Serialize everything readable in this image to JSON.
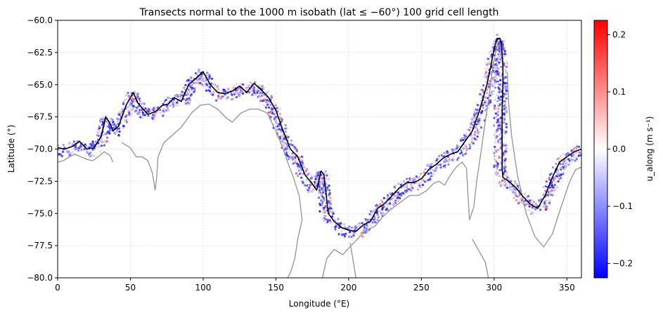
{
  "chart_data": {
    "type": "scatter",
    "title": "Transects normal to the 1000 m isobath (lat ≤ −60°) 100 grid cell length",
    "xlabel": "Longitude (°E)",
    "ylabel": "Latitude (°)",
    "xlim": [
      0,
      360
    ],
    "ylim": [
      -80,
      -60
    ],
    "xticks": [
      0,
      50,
      100,
      150,
      200,
      250,
      300,
      350
    ],
    "xtick_labels": [
      "0",
      "50",
      "100",
      "150",
      "200",
      "250",
      "300",
      "350"
    ],
    "yticks": [
      -60,
      -62.5,
      -65,
      -67.5,
      -70,
      -72.5,
      -75,
      -77.5,
      -80
    ],
    "ytick_labels": [
      "−60.0",
      "−62.5",
      "−65.0",
      "−67.5",
      "−70.0",
      "−72.5",
      "−75.0",
      "−77.5",
      "−80.0"
    ],
    "grid": true,
    "colorbar": {
      "label": "u_along (m s⁻¹)",
      "vmin": -0.225,
      "vmax": 0.225,
      "ticks": [
        0.2,
        0.1,
        0.0,
        -0.1,
        -0.2
      ],
      "tick_labels": [
        "0.2",
        "0.1",
        "0.0",
        "−0.1",
        "−0.2"
      ],
      "colormap": "bwr",
      "colors": [
        "#0000ff",
        "#ffffff",
        "#ff0000"
      ]
    },
    "isobath_line": {
      "color": "#000000",
      "points": [
        [
          0,
          -69.9
        ],
        [
          5,
          -70.0
        ],
        [
          10,
          -69.8
        ],
        [
          15,
          -69.4
        ],
        [
          20,
          -70.0
        ],
        [
          25,
          -69.9
        ],
        [
          30,
          -69.0
        ],
        [
          33,
          -67.5
        ],
        [
          36,
          -68.0
        ],
        [
          38,
          -68.6
        ],
        [
          42,
          -68.2
        ],
        [
          47,
          -66.6
        ],
        [
          52,
          -65.6
        ],
        [
          55,
          -66.4
        ],
        [
          58,
          -66.8
        ],
        [
          62,
          -67.3
        ],
        [
          67,
          -67.1
        ],
        [
          72,
          -66.6
        ],
        [
          76,
          -66.5
        ],
        [
          80,
          -66.0
        ],
        [
          85,
          -66.3
        ],
        [
          90,
          -65.0
        ],
        [
          95,
          -64.5
        ],
        [
          100,
          -64.0
        ],
        [
          105,
          -65.0
        ],
        [
          110,
          -65.6
        ],
        [
          115,
          -65.7
        ],
        [
          120,
          -65.5
        ],
        [
          125,
          -65.1
        ],
        [
          130,
          -65.6
        ],
        [
          135,
          -64.9
        ],
        [
          140,
          -65.4
        ],
        [
          145,
          -66.0
        ],
        [
          150,
          -67.0
        ],
        [
          155,
          -68.6
        ],
        [
          160,
          -70.0
        ],
        [
          165,
          -70.6
        ],
        [
          170,
          -72.0
        ],
        [
          175,
          -72.7
        ],
        [
          178,
          -73.2
        ],
        [
          181,
          -71.7
        ],
        [
          183,
          -72.0
        ],
        [
          184,
          -73.0
        ],
        [
          186,
          -75.0
        ],
        [
          190,
          -75.6
        ],
        [
          195,
          -76.1
        ],
        [
          200,
          -76.3
        ],
        [
          205,
          -76.4
        ],
        [
          210,
          -75.9
        ],
        [
          215,
          -75.6
        ],
        [
          220,
          -74.6
        ],
        [
          225,
          -74.2
        ],
        [
          230,
          -73.6
        ],
        [
          235,
          -73.0
        ],
        [
          240,
          -72.6
        ],
        [
          245,
          -72.6
        ],
        [
          250,
          -72.3
        ],
        [
          255,
          -71.6
        ],
        [
          260,
          -71.2
        ],
        [
          265,
          -70.7
        ],
        [
          270,
          -70.4
        ],
        [
          275,
          -70.2
        ],
        [
          280,
          -69.4
        ],
        [
          285,
          -68.6
        ],
        [
          290,
          -67.0
        ],
        [
          295,
          -65.0
        ],
        [
          298,
          -63.4
        ],
        [
          300,
          -62.2
        ],
        [
          302,
          -61.4
        ],
        [
          304,
          -61.4
        ],
        [
          305,
          -61.8
        ],
        [
          306,
          -63.5
        ],
        [
          306,
          -65.0
        ],
        [
          305.5,
          -67.0
        ],
        [
          305.5,
          -69.0
        ],
        [
          305.5,
          -71.5
        ],
        [
          306,
          -72.2
        ],
        [
          310,
          -72.5
        ],
        [
          315,
          -73.0
        ],
        [
          320,
          -73.7
        ],
        [
          325,
          -74.3
        ],
        [
          330,
          -74.6
        ],
        [
          335,
          -73.6
        ],
        [
          340,
          -72.2
        ],
        [
          345,
          -71.0
        ],
        [
          350,
          -70.6
        ],
        [
          355,
          -70.2
        ],
        [
          360,
          -70.0
        ]
      ]
    },
    "coastline": {
      "color": "#999999",
      "segments": [
        [
          [
            0,
            -71.0
          ],
          [
            4,
            -70.9
          ],
          [
            8,
            -70.6
          ],
          [
            12,
            -70.4
          ],
          [
            16,
            -70.6
          ],
          [
            20,
            -70.8
          ],
          [
            24,
            -70.9
          ],
          [
            28,
            -70.6
          ],
          [
            32,
            -70.2
          ],
          [
            36,
            -70.5
          ],
          [
            38,
            -71.0
          ]
        ],
        [
          [
            44,
            -69.5
          ],
          [
            47,
            -69.7
          ],
          [
            50,
            -69.9
          ],
          [
            54,
            -70.6
          ],
          [
            58,
            -70.6
          ],
          [
            62,
            -70.9
          ],
          [
            65,
            -71.8
          ],
          [
            67,
            -73.2
          ],
          [
            68,
            -72.3
          ],
          [
            69,
            -70.6
          ],
          [
            73,
            -69.5
          ],
          [
            78,
            -69.0
          ],
          [
            85,
            -68.3
          ],
          [
            92,
            -67.2
          ],
          [
            98,
            -66.6
          ],
          [
            104,
            -66.5
          ],
          [
            110,
            -66.9
          ],
          [
            116,
            -67.6
          ],
          [
            120,
            -67.9
          ],
          [
            126,
            -67.2
          ],
          [
            132,
            -66.9
          ],
          [
            138,
            -66.9
          ],
          [
            144,
            -67.2
          ],
          [
            150,
            -68.6
          ],
          [
            155,
            -70.0
          ],
          [
            158,
            -71.0
          ],
          [
            162,
            -72.2
          ],
          [
            166,
            -73.6
          ],
          [
            168,
            -75.5
          ],
          [
            165,
            -77.0
          ],
          [
            163,
            -78.5
          ],
          [
            160,
            -79.6
          ],
          [
            158,
            -80.0
          ]
        ],
        [
          [
            182,
            -80.0
          ],
          [
            185,
            -78.5
          ],
          [
            190,
            -77.8
          ],
          [
            196,
            -78.2
          ],
          [
            200,
            -77.7
          ],
          [
            206,
            -77.0
          ],
          [
            212,
            -76.3
          ],
          [
            218,
            -76.0
          ],
          [
            224,
            -75.2
          ],
          [
            230,
            -74.6
          ],
          [
            236,
            -74.1
          ],
          [
            242,
            -73.6
          ],
          [
            248,
            -73.6
          ],
          [
            254,
            -73.2
          ],
          [
            258,
            -72.7
          ],
          [
            262,
            -72.5
          ],
          [
            266,
            -72.8
          ],
          [
            270,
            -72.0
          ],
          [
            274,
            -71.4
          ],
          [
            278,
            -71.0
          ],
          [
            281,
            -71.5
          ],
          [
            282,
            -73.5
          ],
          [
            283,
            -75.5
          ],
          [
            286,
            -74.5
          ],
          [
            288,
            -72.5
          ],
          [
            291,
            -70.2
          ],
          [
            294,
            -67.8
          ],
          [
            297,
            -65.5
          ],
          [
            299,
            -63.6
          ],
          [
            301,
            -62.5
          ],
          [
            303,
            -61.6
          ]
        ],
        [
          [
            201,
            -77.3
          ],
          [
            203,
            -78.6
          ],
          [
            205,
            -80.0
          ]
        ],
        [
          [
            285,
            -77.0
          ],
          [
            290,
            -78.0
          ],
          [
            294,
            -78.8
          ],
          [
            296,
            -80.0
          ]
        ],
        [
          [
            309,
            -64.0
          ],
          [
            310,
            -66.5
          ],
          [
            312,
            -69.0
          ],
          [
            316,
            -72.0
          ],
          [
            322,
            -75.0
          ],
          [
            328,
            -76.8
          ],
          [
            334,
            -77.6
          ],
          [
            340,
            -76.6
          ],
          [
            346,
            -74.5
          ],
          [
            352,
            -72.5
          ],
          [
            356,
            -71.6
          ],
          [
            360,
            -71.4
          ]
        ]
      ]
    }
  }
}
